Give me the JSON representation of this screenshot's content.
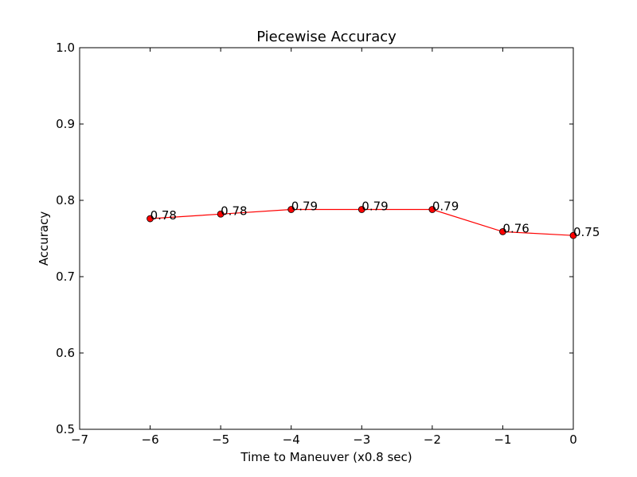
{
  "chart_data": {
    "type": "line",
    "title": "Piecewise Accuracy",
    "xlabel": "Time to Maneuver (x0.8 sec)",
    "ylabel": "Accuracy",
    "xlim": [
      -7,
      0
    ],
    "ylim": [
      0.5,
      1.0
    ],
    "xticks": [
      -7,
      -6,
      -5,
      -4,
      -3,
      -2,
      -1,
      0
    ],
    "xtick_labels": [
      "−7",
      "−6",
      "−5",
      "−4",
      "−3",
      "−2",
      "−1",
      "0"
    ],
    "yticks": [
      0.5,
      0.6,
      0.7,
      0.8,
      0.9,
      1.0
    ],
    "ytick_labels": [
      "0.5",
      "0.6",
      "0.7",
      "0.8",
      "0.9",
      "1.0"
    ],
    "grid": false,
    "series": [
      {
        "color": "#ff0000",
        "marker_color": "#ff0000",
        "x": [
          -6,
          -5,
          -4,
          -3,
          -2,
          -1,
          0
        ],
        "y": [
          0.776,
          0.782,
          0.788,
          0.788,
          0.788,
          0.759,
          0.754
        ],
        "labels": [
          "0.78",
          "0.78",
          "0.79",
          "0.79",
          "0.79",
          "0.76",
          "0.75"
        ]
      }
    ]
  }
}
